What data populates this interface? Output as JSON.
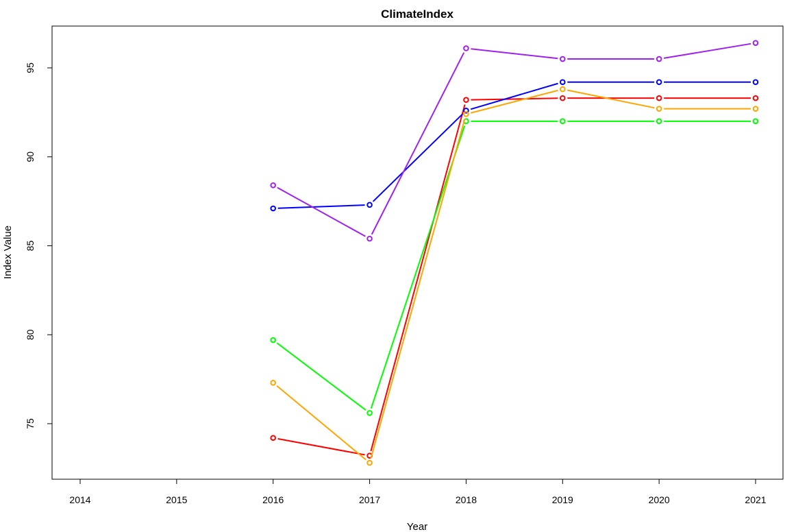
{
  "chart_data": {
    "type": "line",
    "title": "ClimateIndex",
    "xlabel": "Year",
    "ylabel": "Index Value",
    "xlim": [
      2014,
      2021
    ],
    "ylim": [
      72.2,
      96.5
    ],
    "x_ticks": [
      2014,
      2015,
      2016,
      2017,
      2018,
      2019,
      2020,
      2021
    ],
    "y_ticks": [
      75,
      80,
      85,
      90,
      95
    ],
    "grid": false,
    "legend": "none",
    "series": [
      {
        "color": "#ff0000",
        "x": [
          2016,
          2017,
          2018,
          2019,
          2020,
          2021
        ],
        "values": [
          74.2,
          73.2,
          93.2,
          93.3,
          93.3,
          93.3
        ]
      },
      {
        "color": "#00ff00",
        "x": [
          2016,
          2017,
          2018,
          2019,
          2020,
          2021
        ],
        "values": [
          79.7,
          75.6,
          92.0,
          92.0,
          92.0,
          92.0
        ]
      },
      {
        "color": "#0000ff",
        "x": [
          2016,
          2017,
          2018,
          2019,
          2020,
          2021
        ],
        "values": [
          87.1,
          87.3,
          92.6,
          94.2,
          94.2,
          94.2
        ]
      },
      {
        "color": "#ffa500",
        "x": [
          2016,
          2017,
          2018,
          2019,
          2020,
          2021
        ],
        "values": [
          77.3,
          72.8,
          92.4,
          93.8,
          92.7,
          92.7
        ]
      },
      {
        "color": "#a020f0",
        "x": [
          2016,
          2017,
          2018,
          2019,
          2020,
          2021
        ],
        "values": [
          88.4,
          85.4,
          96.1,
          95.5,
          95.5,
          96.4
        ]
      }
    ]
  }
}
